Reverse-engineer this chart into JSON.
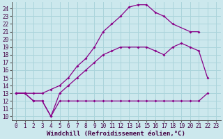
{
  "xlabel": "Windchill (Refroidissement éolien,°C)",
  "bg_color": "#cce8ed",
  "line_color": "#880088",
  "grid_color": "#aad4db",
  "xlim": [
    -0.5,
    23.5
  ],
  "ylim": [
    9.5,
    24.8
  ],
  "xticks": [
    0,
    1,
    2,
    3,
    4,
    5,
    6,
    7,
    8,
    9,
    10,
    11,
    12,
    13,
    14,
    15,
    16,
    17,
    18,
    19,
    20,
    21,
    22,
    23
  ],
  "yticks": [
    10,
    11,
    12,
    13,
    14,
    15,
    16,
    17,
    18,
    19,
    20,
    21,
    22,
    23,
    24
  ],
  "line1_x": [
    0,
    1,
    2,
    3,
    4,
    5,
    6,
    7,
    8,
    9,
    10,
    11,
    12,
    13,
    14,
    15,
    16,
    17,
    18,
    20,
    21
  ],
  "line1_y": [
    13,
    13,
    13,
    13,
    13.5,
    14,
    15,
    16.5,
    17.5,
    19,
    21,
    22,
    23,
    24.2,
    24.5,
    24.5,
    23.5,
    23,
    22,
    21,
    21
  ],
  "line2_x": [
    0,
    1,
    2,
    3,
    4,
    5,
    6,
    7,
    8,
    9,
    10,
    11,
    12,
    13,
    14,
    15,
    16,
    17,
    18,
    19,
    20,
    21,
    22
  ],
  "line2_y": [
    13,
    13,
    12,
    12,
    10,
    12,
    12,
    12,
    12,
    12,
    12,
    12,
    12,
    12,
    12,
    12,
    12,
    12,
    12,
    12,
    12,
    12,
    13
  ],
  "line3_x": [
    0,
    1,
    2,
    3,
    4,
    5,
    6,
    7,
    8,
    9,
    10,
    11,
    12,
    13,
    14,
    15,
    16,
    17,
    18,
    19,
    20,
    21,
    22
  ],
  "line3_y": [
    13,
    13,
    12,
    12,
    10,
    13,
    14,
    15,
    16,
    17,
    18,
    18.5,
    19,
    19,
    19,
    19,
    18.5,
    18,
    19,
    19.5,
    19,
    18.5,
    15
  ],
  "marker": "D",
  "markersize": 2.0,
  "linewidth": 0.9,
  "tick_fontsize": 5.5,
  "xlabel_fontsize": 6.5
}
